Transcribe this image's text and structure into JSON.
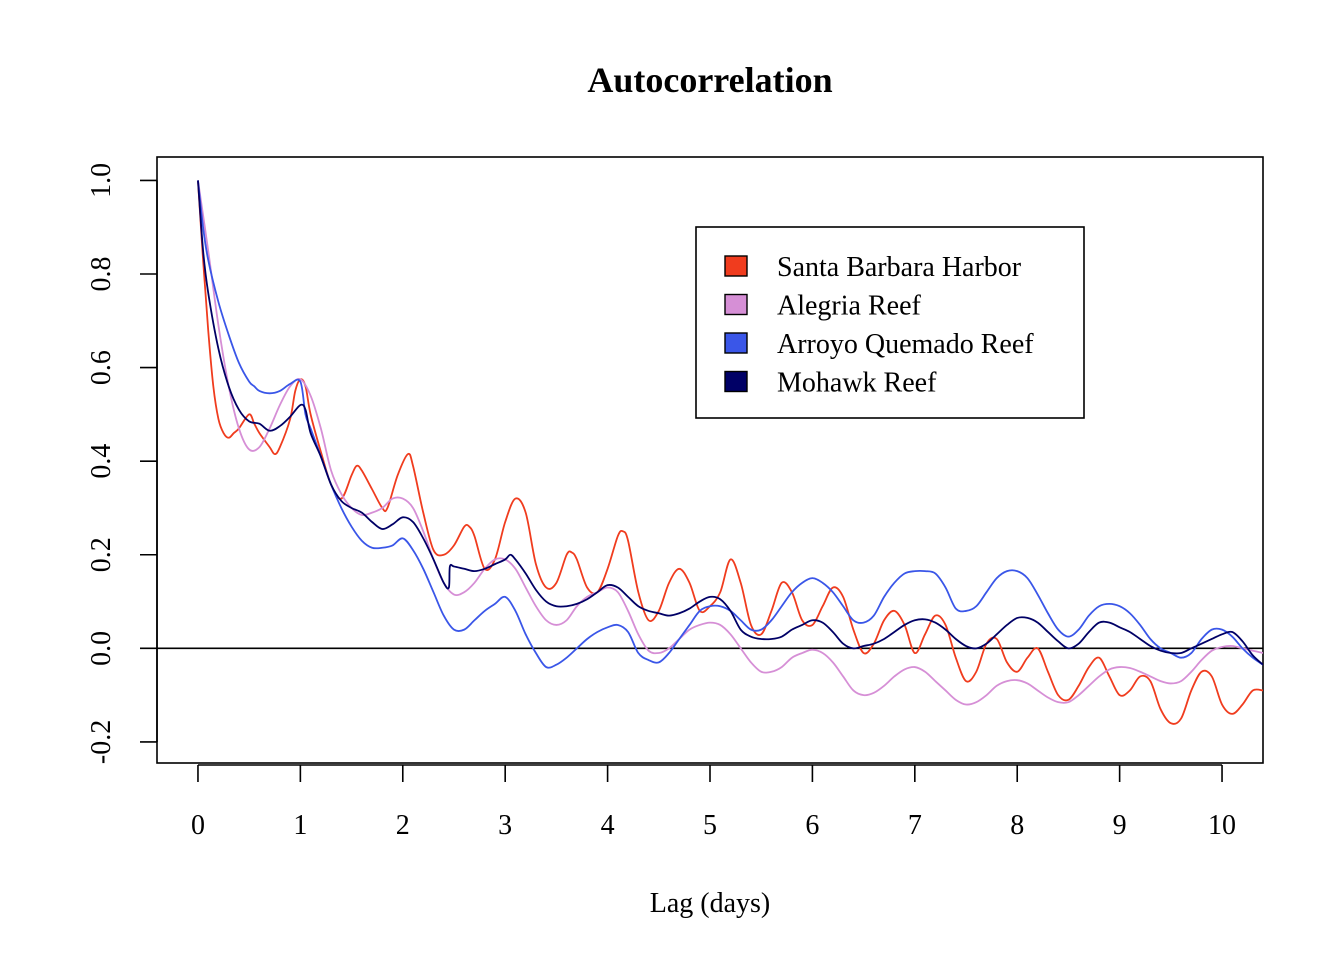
{
  "chart_data": {
    "type": "line",
    "title": "Autocorrelation",
    "xlabel": "Lag (days)",
    "ylabel": "",
    "xlim": [
      -0.4,
      10.4
    ],
    "ylim": [
      -0.245,
      1.05
    ],
    "x_ticks": [
      "0",
      "1",
      "2",
      "3",
      "4",
      "5",
      "6",
      "7",
      "8",
      "9",
      "10"
    ],
    "y_ticks": [
      "-0.2",
      "0.0",
      "0.2",
      "0.4",
      "0.6",
      "0.8",
      "1.0"
    ],
    "reference_line_y": 0,
    "grid": false,
    "legend_position": "top-right",
    "series": [
      {
        "name": "Santa Barbara Harbor",
        "color": "#f03c1e",
        "x": [
          0,
          0.05,
          0.1,
          0.15,
          0.2,
          0.25,
          0.3,
          0.35,
          0.4,
          0.5,
          0.55,
          0.6,
          0.7,
          0.75,
          0.8,
          0.9,
          0.95,
          1.0,
          1.05,
          1.1,
          1.2,
          1.3,
          1.4,
          1.5,
          1.55,
          1.6,
          1.7,
          1.8,
          1.85,
          1.95,
          2.05,
          2.1,
          2.2,
          2.3,
          2.4,
          2.5,
          2.6,
          2.65,
          2.7,
          2.8,
          2.9,
          3.0,
          3.1,
          3.2,
          3.3,
          3.4,
          3.5,
          3.6,
          3.65,
          3.7,
          3.8,
          3.9,
          4.0,
          4.1,
          4.15,
          4.2,
          4.3,
          4.4,
          4.5,
          4.6,
          4.7,
          4.8,
          4.9,
          5.0,
          5.1,
          5.2,
          5.3,
          5.4,
          5.5,
          5.6,
          5.7,
          5.8,
          5.9,
          6.0,
          6.1,
          6.2,
          6.3,
          6.4,
          6.5,
          6.6,
          6.7,
          6.8,
          6.9,
          7.0,
          7.1,
          7.2,
          7.3,
          7.4,
          7.5,
          7.6,
          7.7,
          7.8,
          7.9,
          8.0,
          8.1,
          8.2,
          8.3,
          8.4,
          8.5,
          8.6,
          8.7,
          8.8,
          8.9,
          9.0,
          9.1,
          9.2,
          9.3,
          9.4,
          9.5,
          9.6,
          9.7,
          9.8,
          9.9,
          10.0,
          10.1,
          10.2,
          10.3,
          10.4
        ],
        "values": [
          1.0,
          0.83,
          0.68,
          0.56,
          0.49,
          0.46,
          0.45,
          0.46,
          0.47,
          0.5,
          0.48,
          0.46,
          0.43,
          0.415,
          0.43,
          0.49,
          0.55,
          0.575,
          0.56,
          0.5,
          0.42,
          0.35,
          0.32,
          0.37,
          0.39,
          0.38,
          0.34,
          0.3,
          0.3,
          0.37,
          0.415,
          0.39,
          0.29,
          0.21,
          0.2,
          0.22,
          0.26,
          0.26,
          0.24,
          0.17,
          0.19,
          0.27,
          0.32,
          0.29,
          0.18,
          0.13,
          0.14,
          0.2,
          0.205,
          0.19,
          0.13,
          0.12,
          0.17,
          0.24,
          0.25,
          0.23,
          0.12,
          0.06,
          0.08,
          0.14,
          0.17,
          0.14,
          0.08,
          0.09,
          0.12,
          0.19,
          0.14,
          0.05,
          0.03,
          0.08,
          0.14,
          0.12,
          0.06,
          0.05,
          0.09,
          0.13,
          0.11,
          0.04,
          -0.01,
          0.01,
          0.06,
          0.08,
          0.05,
          -0.01,
          0.03,
          0.07,
          0.05,
          -0.02,
          -0.07,
          -0.05,
          0.01,
          0.02,
          -0.03,
          -0.05,
          -0.02,
          0.0,
          -0.05,
          -0.1,
          -0.11,
          -0.08,
          -0.04,
          -0.02,
          -0.06,
          -0.1,
          -0.09,
          -0.06,
          -0.07,
          -0.13,
          -0.16,
          -0.15,
          -0.09,
          -0.05,
          -0.06,
          -0.12,
          -0.14,
          -0.12,
          -0.09,
          -0.09
        ]
      },
      {
        "name": "Alegria Reef",
        "color": "#d68fd6",
        "x": [
          0,
          0.1,
          0.2,
          0.3,
          0.4,
          0.5,
          0.6,
          0.7,
          0.8,
          0.9,
          1.0,
          1.1,
          1.2,
          1.3,
          1.4,
          1.5,
          1.6,
          1.7,
          1.8,
          1.9,
          2.0,
          2.1,
          2.2,
          2.3,
          2.4,
          2.5,
          2.6,
          2.7,
          2.8,
          2.9,
          3.0,
          3.1,
          3.2,
          3.3,
          3.4,
          3.5,
          3.6,
          3.7,
          3.8,
          3.9,
          4.0,
          4.1,
          4.2,
          4.3,
          4.4,
          4.5,
          4.6,
          4.7,
          4.8,
          4.9,
          5.0,
          5.1,
          5.2,
          5.3,
          5.4,
          5.5,
          5.6,
          5.7,
          5.8,
          5.9,
          6.0,
          6.1,
          6.2,
          6.3,
          6.4,
          6.5,
          6.6,
          6.7,
          6.8,
          6.9,
          7.0,
          7.1,
          7.2,
          7.3,
          7.4,
          7.5,
          7.6,
          7.7,
          7.8,
          7.9,
          8.0,
          8.1,
          8.2,
          8.3,
          8.4,
          8.5,
          8.6,
          8.7,
          8.8,
          8.9,
          9.0,
          9.1,
          9.2,
          9.3,
          9.4,
          9.5,
          9.6,
          9.7,
          9.8,
          9.9,
          10.0,
          10.1,
          10.2,
          10.3,
          10.4
        ],
        "values": [
          1.0,
          0.85,
          0.69,
          0.56,
          0.47,
          0.425,
          0.43,
          0.47,
          0.52,
          0.56,
          0.575,
          0.54,
          0.47,
          0.38,
          0.33,
          0.3,
          0.285,
          0.29,
          0.3,
          0.32,
          0.32,
          0.3,
          0.25,
          0.19,
          0.14,
          0.115,
          0.12,
          0.14,
          0.17,
          0.19,
          0.19,
          0.17,
          0.13,
          0.09,
          0.06,
          0.05,
          0.06,
          0.09,
          0.11,
          0.12,
          0.13,
          0.12,
          0.08,
          0.03,
          -0.005,
          -0.01,
          0.0,
          0.02,
          0.04,
          0.05,
          0.055,
          0.05,
          0.03,
          0.0,
          -0.03,
          -0.05,
          -0.05,
          -0.04,
          -0.02,
          -0.01,
          -0.003,
          -0.01,
          -0.03,
          -0.06,
          -0.09,
          -0.1,
          -0.095,
          -0.08,
          -0.06,
          -0.045,
          -0.04,
          -0.05,
          -0.07,
          -0.09,
          -0.11,
          -0.12,
          -0.115,
          -0.1,
          -0.08,
          -0.07,
          -0.068,
          -0.075,
          -0.09,
          -0.105,
          -0.115,
          -0.115,
          -0.1,
          -0.08,
          -0.06,
          -0.045,
          -0.04,
          -0.042,
          -0.05,
          -0.06,
          -0.07,
          -0.075,
          -0.07,
          -0.05,
          -0.025,
          -0.005,
          0.003,
          0.005,
          0.0,
          -0.005,
          -0.01
        ]
      },
      {
        "name": "Arroyo Quemado Reef",
        "color": "#3a56e8",
        "x": [
          0,
          0.05,
          0.1,
          0.2,
          0.3,
          0.4,
          0.5,
          0.55,
          0.6,
          0.7,
          0.8,
          0.9,
          1.0,
          1.05,
          1.1,
          1.2,
          1.3,
          1.4,
          1.5,
          1.6,
          1.7,
          1.8,
          1.9,
          2.0,
          2.1,
          2.2,
          2.3,
          2.4,
          2.5,
          2.6,
          2.7,
          2.8,
          2.9,
          3.0,
          3.1,
          3.2,
          3.3,
          3.4,
          3.5,
          3.6,
          3.7,
          3.8,
          3.9,
          4.0,
          4.1,
          4.2,
          4.3,
          4.4,
          4.5,
          4.6,
          4.7,
          4.8,
          4.9,
          5.0,
          5.1,
          5.2,
          5.3,
          5.4,
          5.5,
          5.6,
          5.7,
          5.8,
          5.9,
          6.0,
          6.1,
          6.2,
          6.3,
          6.4,
          6.5,
          6.6,
          6.7,
          6.8,
          6.9,
          7.0,
          7.1,
          7.2,
          7.3,
          7.4,
          7.5,
          7.6,
          7.7,
          7.8,
          7.9,
          8.0,
          8.1,
          8.2,
          8.3,
          8.4,
          8.5,
          8.6,
          8.7,
          8.8,
          8.9,
          9.0,
          9.1,
          9.2,
          9.3,
          9.4,
          9.5,
          9.6,
          9.7,
          9.8,
          9.9,
          10.0,
          10.1,
          10.2,
          10.3,
          10.4
        ],
        "values": [
          1.0,
          0.9,
          0.83,
          0.74,
          0.67,
          0.61,
          0.57,
          0.56,
          0.55,
          0.545,
          0.55,
          0.565,
          0.57,
          0.5,
          0.47,
          0.41,
          0.35,
          0.3,
          0.26,
          0.23,
          0.215,
          0.215,
          0.22,
          0.235,
          0.21,
          0.17,
          0.12,
          0.07,
          0.04,
          0.04,
          0.06,
          0.08,
          0.095,
          0.11,
          0.08,
          0.03,
          -0.01,
          -0.04,
          -0.035,
          -0.02,
          0.0,
          0.02,
          0.035,
          0.045,
          0.05,
          0.035,
          -0.01,
          -0.025,
          -0.03,
          -0.01,
          0.02,
          0.05,
          0.08,
          0.09,
          0.09,
          0.08,
          0.06,
          0.04,
          0.04,
          0.06,
          0.09,
          0.12,
          0.14,
          0.15,
          0.14,
          0.12,
          0.09,
          0.06,
          0.055,
          0.07,
          0.11,
          0.14,
          0.16,
          0.165,
          0.165,
          0.16,
          0.13,
          0.085,
          0.08,
          0.09,
          0.12,
          0.15,
          0.165,
          0.165,
          0.15,
          0.115,
          0.075,
          0.04,
          0.025,
          0.04,
          0.07,
          0.09,
          0.095,
          0.09,
          0.075,
          0.05,
          0.02,
          0.0,
          -0.01,
          -0.02,
          -0.01,
          0.02,
          0.04,
          0.04,
          0.025,
          0.0,
          -0.02,
          -0.035
        ]
      },
      {
        "name": "Mohawk Reef",
        "color": "#000066",
        "x": [
          0,
          0.05,
          0.1,
          0.2,
          0.3,
          0.4,
          0.5,
          0.6,
          0.7,
          0.8,
          0.9,
          1.0,
          1.05,
          1.1,
          1.2,
          1.3,
          1.4,
          1.5,
          1.6,
          1.7,
          1.8,
          1.9,
          2.0,
          2.1,
          2.2,
          2.3,
          2.4,
          2.45,
          2.46,
          2.5,
          2.6,
          2.7,
          2.8,
          2.9,
          3.0,
          3.05,
          3.1,
          3.2,
          3.3,
          3.4,
          3.5,
          3.6,
          3.7,
          3.8,
          3.9,
          4.0,
          4.1,
          4.2,
          4.3,
          4.4,
          4.5,
          4.6,
          4.7,
          4.8,
          4.9,
          5.0,
          5.1,
          5.2,
          5.3,
          5.4,
          5.5,
          5.6,
          5.7,
          5.8,
          5.9,
          6.0,
          6.1,
          6.2,
          6.3,
          6.4,
          6.5,
          6.6,
          6.7,
          6.8,
          6.9,
          7.0,
          7.1,
          7.2,
          7.3,
          7.4,
          7.5,
          7.6,
          7.7,
          7.8,
          7.9,
          8.0,
          8.1,
          8.2,
          8.3,
          8.4,
          8.5,
          8.6,
          8.7,
          8.8,
          8.9,
          9.0,
          9.1,
          9.2,
          9.3,
          9.4,
          9.5,
          9.6,
          9.7,
          9.8,
          9.9,
          10.0,
          10.1,
          10.2,
          10.3,
          10.4
        ],
        "values": [
          1.0,
          0.85,
          0.76,
          0.64,
          0.56,
          0.51,
          0.485,
          0.48,
          0.465,
          0.475,
          0.495,
          0.52,
          0.51,
          0.46,
          0.41,
          0.35,
          0.315,
          0.3,
          0.29,
          0.27,
          0.255,
          0.265,
          0.28,
          0.27,
          0.235,
          0.19,
          0.14,
          0.13,
          0.175,
          0.175,
          0.17,
          0.165,
          0.17,
          0.18,
          0.19,
          0.2,
          0.19,
          0.16,
          0.125,
          0.1,
          0.09,
          0.09,
          0.095,
          0.105,
          0.12,
          0.135,
          0.13,
          0.11,
          0.09,
          0.08,
          0.075,
          0.07,
          0.075,
          0.085,
          0.1,
          0.11,
          0.105,
          0.08,
          0.04,
          0.025,
          0.02,
          0.02,
          0.025,
          0.04,
          0.05,
          0.06,
          0.055,
          0.035,
          0.01,
          0.0,
          0.005,
          0.01,
          0.02,
          0.035,
          0.05,
          0.06,
          0.062,
          0.055,
          0.04,
          0.02,
          0.005,
          0.0,
          0.01,
          0.03,
          0.05,
          0.065,
          0.065,
          0.055,
          0.035,
          0.015,
          0.0,
          0.01,
          0.035,
          0.055,
          0.055,
          0.045,
          0.035,
          0.02,
          0.005,
          -0.005,
          -0.01,
          -0.01,
          0.0,
          0.01,
          0.02,
          0.03,
          0.035,
          0.015,
          -0.015,
          -0.035
        ]
      }
    ]
  }
}
